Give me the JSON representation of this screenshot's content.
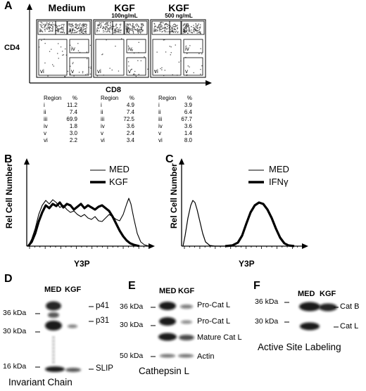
{
  "panelA": {
    "label": "A",
    "y_axis_label": "CD4",
    "x_axis_label": "CD8",
    "plots": [
      {
        "title": "Medium",
        "subtitle": ""
      },
      {
        "title": "KGF",
        "subtitle": "100ng/mL"
      },
      {
        "title": "KGF",
        "subtitle": "500 ng/mL"
      }
    ],
    "gate_labels": [
      "i",
      "ii",
      "iii",
      "iv",
      "v",
      "vi"
    ],
    "table_header": {
      "region": "Region",
      "percent": "%"
    },
    "tables": [
      {
        "rows": [
          [
            "i",
            "11.2"
          ],
          [
            "ii",
            "7.4"
          ],
          [
            "iii",
            "69.9"
          ],
          [
            "iv",
            "1.8"
          ],
          [
            "v",
            "3.0"
          ],
          [
            "vi",
            "2.2"
          ]
        ]
      },
      {
        "rows": [
          [
            "i",
            "4.9"
          ],
          [
            "ii",
            "7.4"
          ],
          [
            "iii",
            "72.5"
          ],
          [
            "iv",
            "3.6"
          ],
          [
            "v",
            "2.4"
          ],
          [
            "vi",
            "3.4"
          ]
        ]
      },
      {
        "rows": [
          [
            "i",
            "3.9"
          ],
          [
            "ii",
            "6.4"
          ],
          [
            "iii",
            "67.7"
          ],
          [
            "iv",
            "3.6"
          ],
          [
            "v",
            "1.4"
          ],
          [
            "vi",
            "8.0"
          ]
        ]
      }
    ]
  },
  "panelB": {
    "label": "B",
    "ylabel": "Rel Cell Number",
    "xlabel": "Y3P",
    "legend": [
      {
        "name": "MED",
        "weight": "thin"
      },
      {
        "name": "KGF",
        "weight": "thick"
      }
    ]
  },
  "panelC": {
    "label": "C",
    "ylabel": "Rel Cell Number",
    "xlabel": "Y3P",
    "legend": [
      {
        "name": "MED",
        "weight": "thin"
      },
      {
        "name": "IFNγ",
        "weight": "thick"
      }
    ]
  },
  "panelD": {
    "label": "D",
    "lanes": [
      "MED",
      "KGF"
    ],
    "markers": [
      "36 kDa",
      "30 kDa",
      "16 kDa"
    ],
    "bands": [
      "p41",
      "p31",
      "SLIP"
    ],
    "caption": "Invariant Chain"
  },
  "panelE": {
    "label": "E",
    "lanes": [
      "MED",
      "KGF"
    ],
    "markers": [
      "36 kDa",
      "30 kDa",
      "50 kDa"
    ],
    "bands": [
      "Pro-Cat L",
      "Pro-Cat L",
      "Mature Cat L",
      "Actin"
    ],
    "caption": "Cathepsin L"
  },
  "panelF": {
    "label": "F",
    "lanes": [
      "MED",
      "KGF"
    ],
    "markers": [
      "36 kDa",
      "30 kDa"
    ],
    "bands": [
      "Cat B",
      "Cat L"
    ],
    "caption": "Active Site Labeling"
  }
}
